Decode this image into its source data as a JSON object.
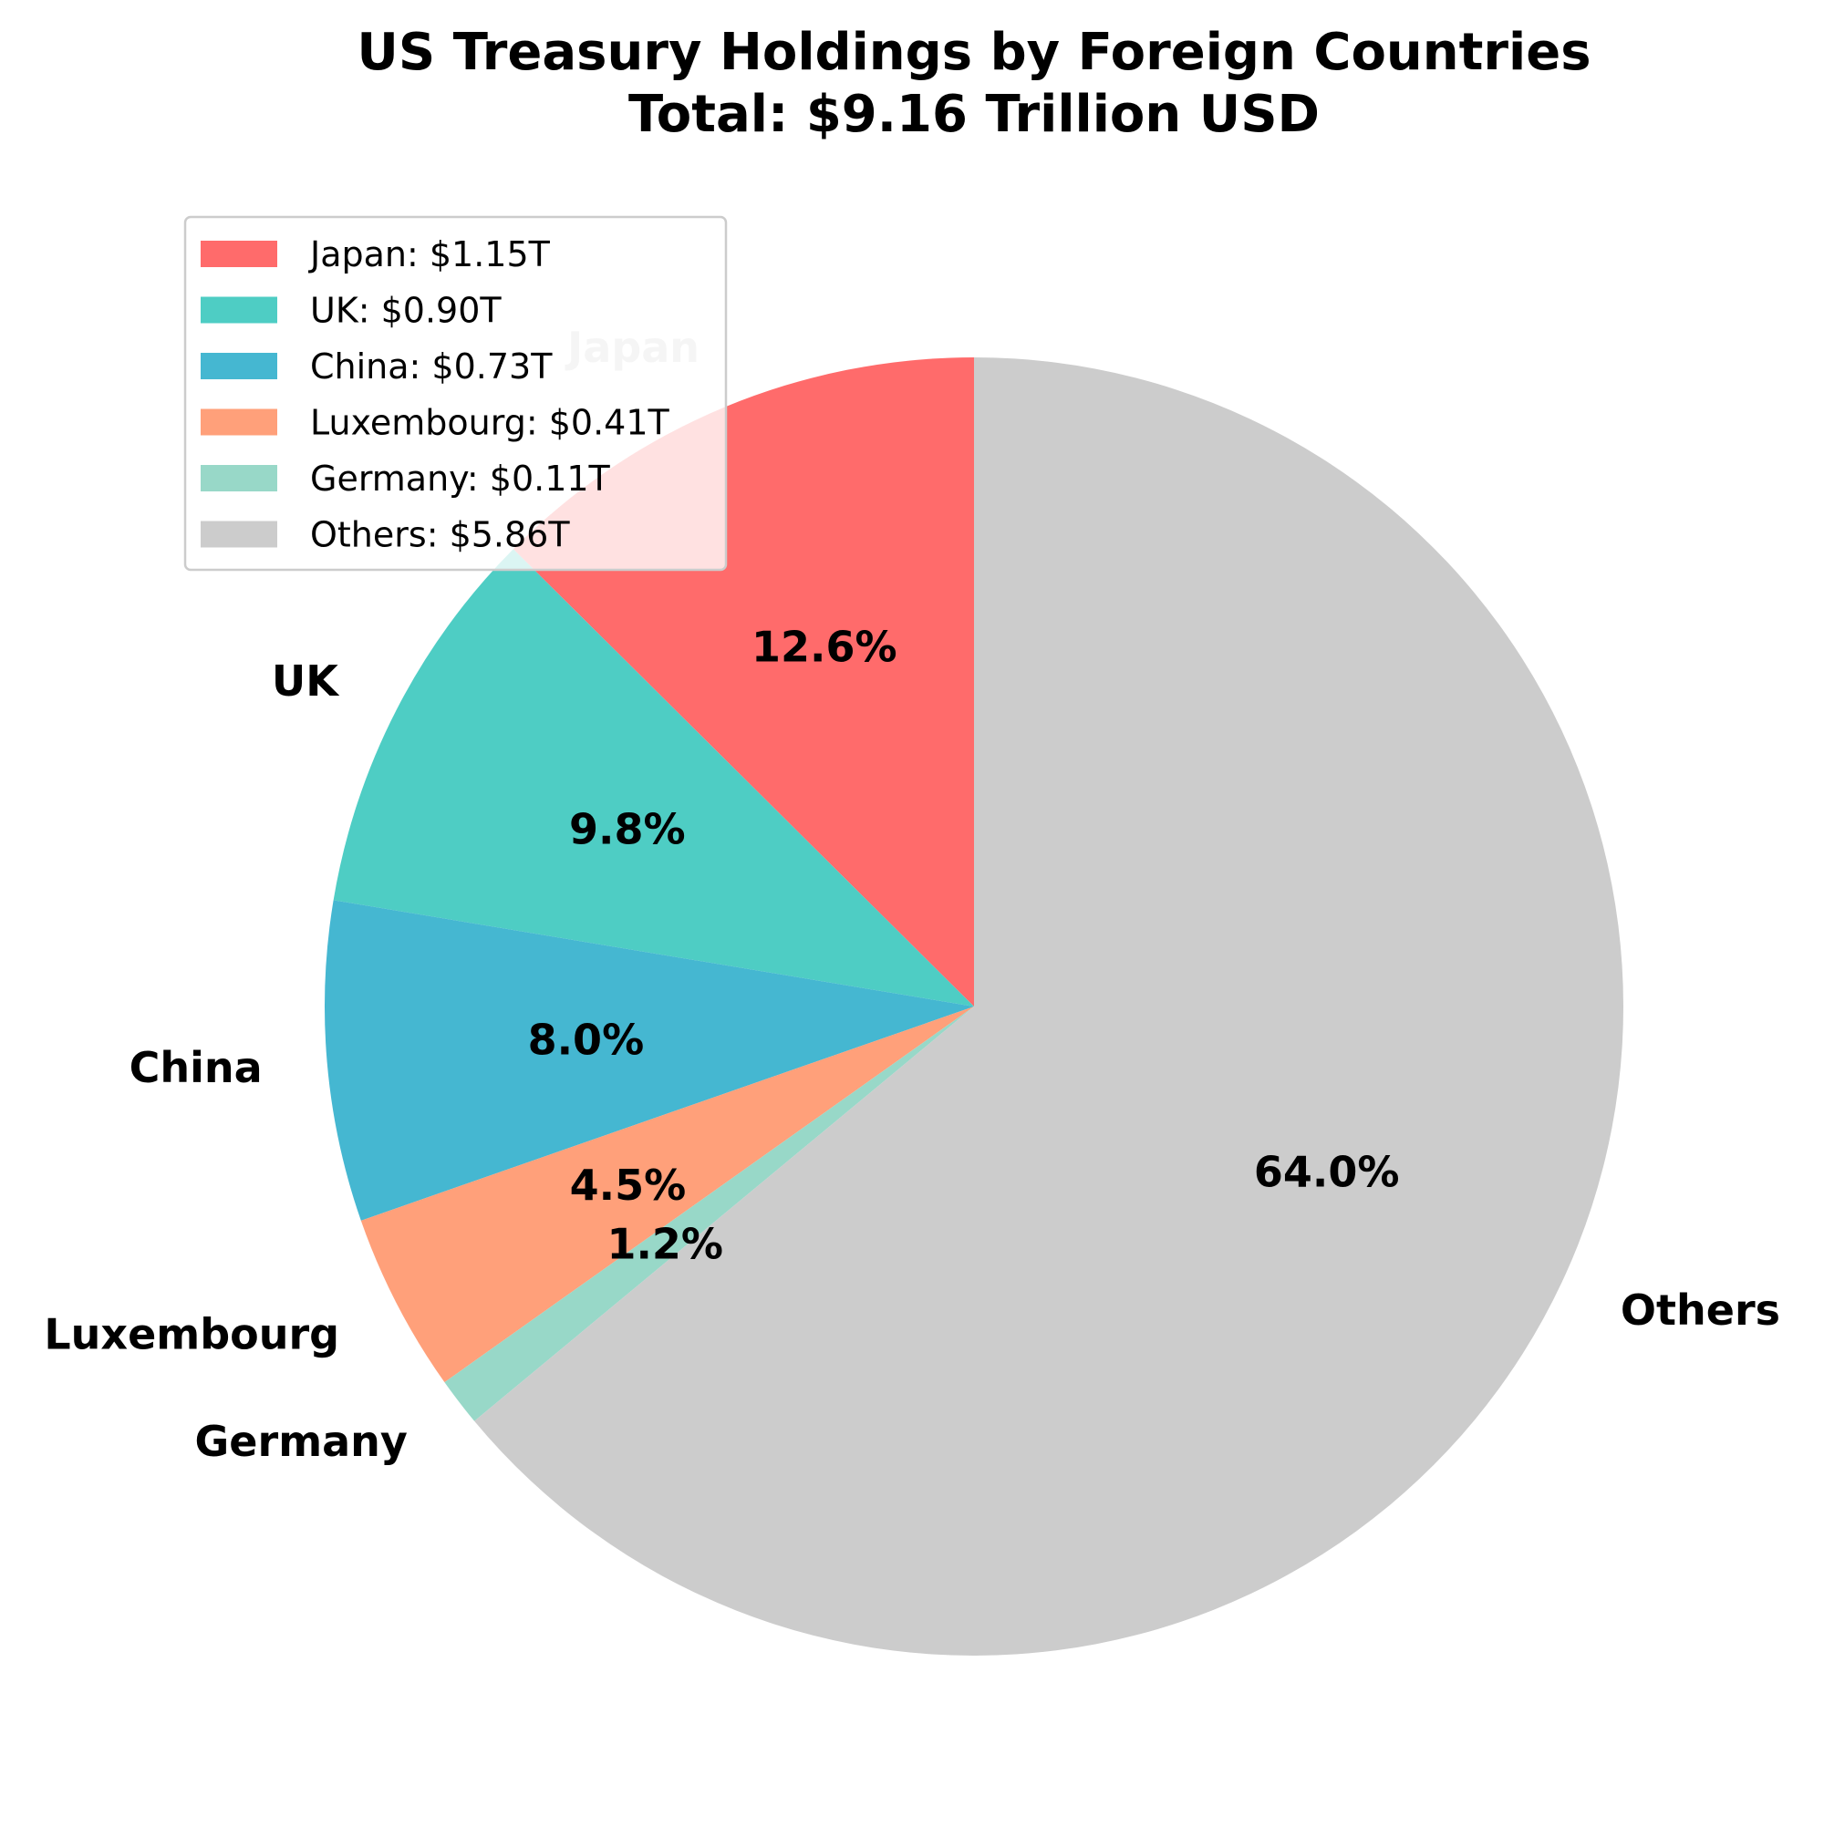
{
  "chart_data": {
    "type": "pie",
    "title": "US Treasury Holdings by Foreign Countries",
    "subtitle": "Total: $9.16 Trillion USD",
    "legend_position": "upper-left",
    "slices": [
      {
        "label": "Japan",
        "value": 1.15,
        "percent_label": "12.6%",
        "legend_label": "Japan: $1.15T",
        "color": "#FF6B6B"
      },
      {
        "label": "UK",
        "value": 0.9,
        "percent_label": "9.8%",
        "legend_label": "UK: $0.90T",
        "color": "#4ECDC4"
      },
      {
        "label": "China",
        "value": 0.73,
        "percent_label": "8.0%",
        "legend_label": "China: $0.73T",
        "color": "#45B7D1"
      },
      {
        "label": "Luxembourg",
        "value": 0.41,
        "percent_label": "4.5%",
        "legend_label": "Luxembourg: $0.41T",
        "color": "#FFA07A"
      },
      {
        "label": "Germany",
        "value": 0.11,
        "percent_label": "1.2%",
        "legend_label": "Germany: $0.11T",
        "color": "#98D8C8"
      },
      {
        "label": "Others",
        "value": 5.86,
        "percent_label": "64.0%",
        "legend_label": "Others: $5.86T",
        "color": "#CCCCCC"
      }
    ]
  }
}
